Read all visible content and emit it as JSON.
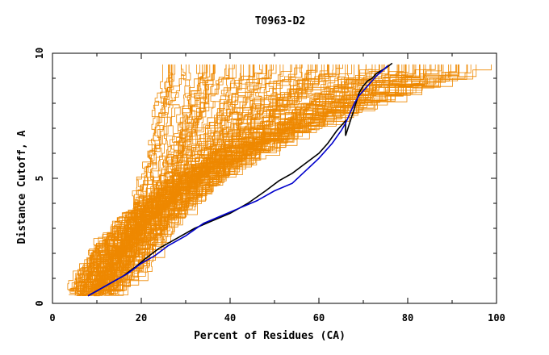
{
  "chart_data": {
    "type": "line",
    "title": "T0963-D2",
    "xlabel": "Percent of Residues (CA)",
    "ylabel": "Distance Cutoff, A",
    "xlim": [
      0,
      100
    ],
    "ylim": [
      0,
      10
    ],
    "x_ticks": [
      0,
      20,
      40,
      60,
      80,
      100
    ],
    "y_ticks": [
      0,
      5,
      10
    ],
    "x_tick_labels": [
      "0",
      "20",
      "40",
      "60",
      "80",
      "100"
    ],
    "y_tick_labels": [
      "0",
      "5",
      "10"
    ],
    "grid": false,
    "colors": {
      "background_series": "#ee8800",
      "highlight_black": "#000000",
      "highlight_blue": "#0000cc",
      "axis": "#000000"
    },
    "highlight_series": [
      {
        "color": "#000000",
        "x": [
          8,
          10,
          13,
          16,
          19,
          21,
          24,
          28,
          32,
          36,
          40,
          44,
          48,
          51,
          54,
          57,
          60,
          62,
          64,
          66,
          66,
          68,
          69,
          70,
          71,
          72,
          73,
          75,
          76.5
        ],
        "y": [
          0.3,
          0.5,
          0.8,
          1.1,
          1.5,
          1.8,
          2.2,
          2.6,
          3.0,
          3.3,
          3.6,
          4.0,
          4.5,
          4.9,
          5.2,
          5.6,
          6.0,
          6.4,
          6.9,
          7.3,
          6.7,
          7.8,
          8.4,
          8.7,
          8.9,
          9.0,
          9.2,
          9.4,
          9.6
        ]
      },
      {
        "color": "#0000cc",
        "x": [
          8,
          11,
          14,
          17,
          20,
          23,
          26,
          30,
          34,
          38,
          42,
          46,
          50,
          54,
          57,
          60,
          63,
          65,
          66,
          67,
          68,
          69,
          71,
          73,
          75.5
        ],
        "y": [
          0.3,
          0.6,
          0.9,
          1.2,
          1.6,
          1.9,
          2.3,
          2.7,
          3.2,
          3.5,
          3.8,
          4.1,
          4.5,
          4.8,
          5.3,
          5.8,
          6.4,
          6.9,
          7.2,
          7.6,
          8.0,
          8.3,
          8.7,
          9.1,
          9.5
        ]
      }
    ]
  }
}
